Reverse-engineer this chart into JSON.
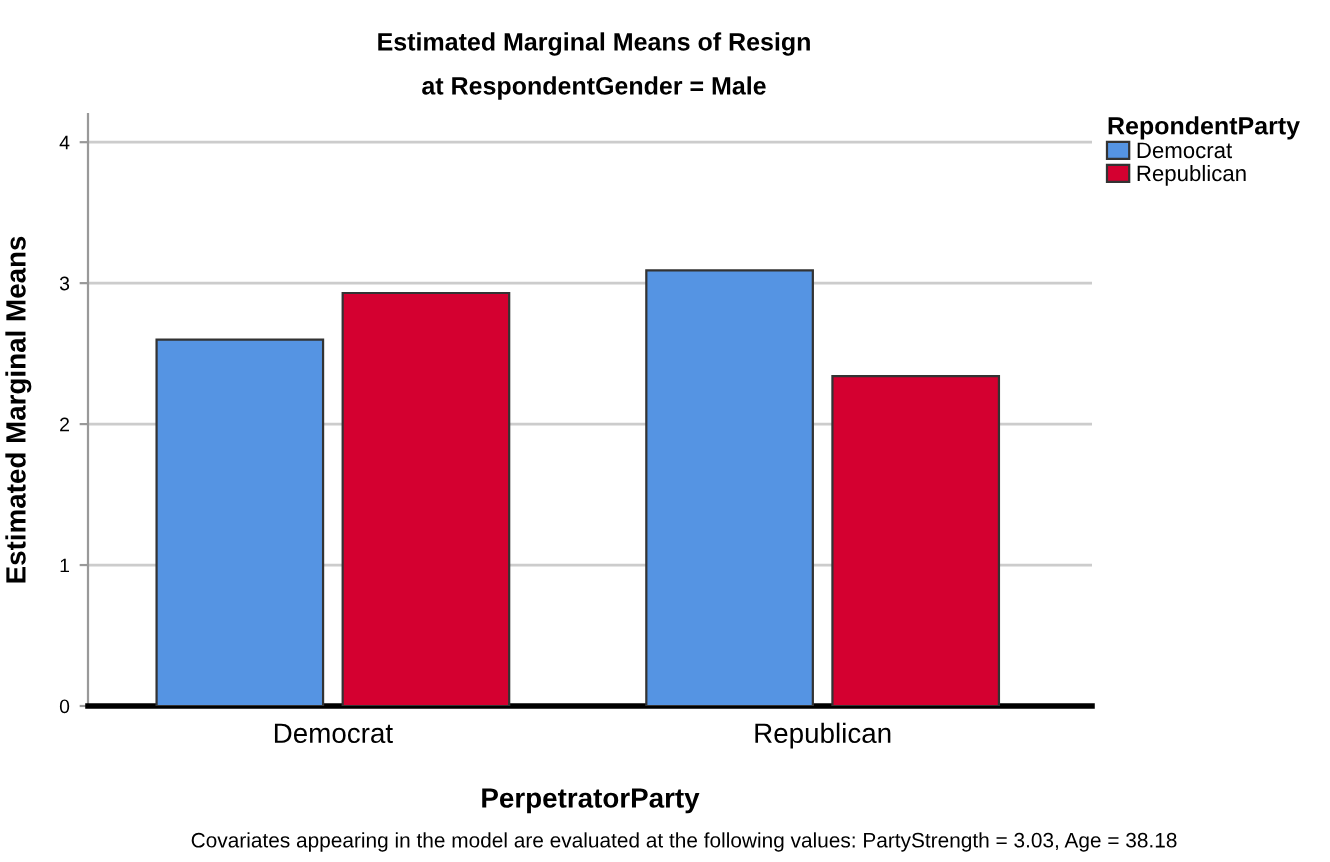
{
  "chart_data": {
    "type": "bar",
    "title": "Estimated Marginal Means of Resign",
    "subtitle": "at RespondentGender = Male",
    "xlabel": "PerpetratorParty",
    "ylabel": "Estimated Marginal Means",
    "legend_title": "RepondentParty",
    "categories": [
      "Democrat",
      "Republican"
    ],
    "series": [
      {
        "name": "Democrat",
        "color": "#5594e3",
        "values": [
          2.6,
          3.09
        ]
      },
      {
        "name": "Republican",
        "color": "#d40030",
        "values": [
          2.93,
          2.34
        ]
      }
    ],
    "ylim": [
      0,
      4.2
    ],
    "yticks": [
      0,
      1,
      2,
      3,
      4
    ],
    "grid": "y",
    "legend": "top right",
    "annotations": [
      "Covariates appearing in the model are evaluated at the following values: PartyStrength = 3.03, Age = 38.18"
    ]
  }
}
